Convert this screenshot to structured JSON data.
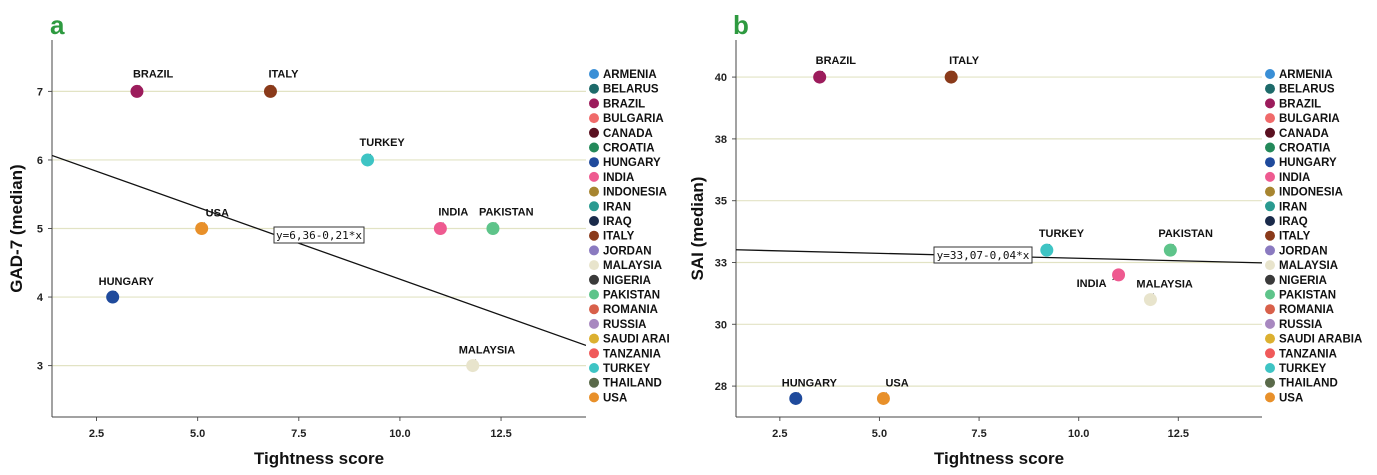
{
  "panels": [
    {
      "letter": "a",
      "xlabel": "Tightness score",
      "ylabel": "GAD-7 (median)",
      "x_ticks": [
        {
          "value": 2.5,
          "label": "2.5"
        },
        {
          "value": 5.0,
          "label": "5.0"
        },
        {
          "value": 7.5,
          "label": "7.5"
        },
        {
          "value": 10.0,
          "label": "10.0"
        },
        {
          "value": 12.5,
          "label": "12.5"
        }
      ],
      "y_ticks": [
        {
          "value": 3,
          "label": "3"
        },
        {
          "value": 4,
          "label": "4"
        },
        {
          "value": 5,
          "label": "5"
        },
        {
          "value": 6,
          "label": "6"
        },
        {
          "value": 7,
          "label": "7"
        }
      ],
      "equation": "y=6,36-0,21*x"
    },
    {
      "letter": "b",
      "xlabel": "Tightness score",
      "ylabel": "SAI (median)",
      "x_ticks": [
        {
          "value": 2.5,
          "label": "2.5"
        },
        {
          "value": 5.0,
          "label": "5.0"
        },
        {
          "value": 7.5,
          "label": "7.5"
        },
        {
          "value": 10.0,
          "label": "10.0"
        },
        {
          "value": 12.5,
          "label": "12.5"
        }
      ],
      "y_ticks": [
        {
          "value": 27.5,
          "label": "28"
        },
        {
          "value": 30,
          "label": "30"
        },
        {
          "value": 32.5,
          "label": "33"
        },
        {
          "value": 35,
          "label": "35"
        },
        {
          "value": 37.5,
          "label": "38"
        },
        {
          "value": 40,
          "label": "40"
        }
      ],
      "equation": "y=33,07-0,04*x"
    }
  ],
  "legend_a": [
    {
      "name": "ARMENIA",
      "color": "#3a8fd6"
    },
    {
      "name": "BELARUS",
      "color": "#1d6a6a"
    },
    {
      "name": "BRAZIL",
      "color": "#9c1c5c"
    },
    {
      "name": "BULGARIA",
      "color": "#f06a6a"
    },
    {
      "name": "CANADA",
      "color": "#5a1020"
    },
    {
      "name": "CROATIA",
      "color": "#23895a"
    },
    {
      "name": "HUNGARY",
      "color": "#1f4a9c"
    },
    {
      "name": "INDIA",
      "color": "#ee5a90"
    },
    {
      "name": "INDONESIA",
      "color": "#a78530"
    },
    {
      "name": "IRAN",
      "color": "#2a9a90"
    },
    {
      "name": "IRAQ",
      "color": "#1a2a4a"
    },
    {
      "name": "ITALY",
      "color": "#8a3a1a"
    },
    {
      "name": "JORDAN",
      "color": "#8a7ac0"
    },
    {
      "name": "MALAYSIA",
      "color": "#e8e4cc"
    },
    {
      "name": "NIGERIA",
      "color": "#3a3a3a"
    },
    {
      "name": "PAKISTAN",
      "color": "#5ec48a"
    },
    {
      "name": "ROMANIA",
      "color": "#d8604a"
    },
    {
      "name": "RUSSIA",
      "color": "#a888c0"
    },
    {
      "name": "SAUDI ARAI",
      "color": "#dcb030"
    },
    {
      "name": "TANZANIA",
      "color": "#f05a5a"
    },
    {
      "name": "TURKEY",
      "color": "#3ec4c4"
    },
    {
      "name": "THAILAND",
      "color": "#5a6a4a"
    },
    {
      "name": "USA",
      "color": "#e8902a"
    }
  ],
  "legend_b": [
    {
      "name": "ARMENIA",
      "color": "#3a8fd6"
    },
    {
      "name": "BELARUS",
      "color": "#1d6a6a"
    },
    {
      "name": "BRAZIL",
      "color": "#9c1c5c"
    },
    {
      "name": "BULGARIA",
      "color": "#f06a6a"
    },
    {
      "name": "CANADA",
      "color": "#5a1020"
    },
    {
      "name": "CROATIA",
      "color": "#23895a"
    },
    {
      "name": "HUNGARY",
      "color": "#1f4a9c"
    },
    {
      "name": "INDIA",
      "color": "#ee5a90"
    },
    {
      "name": "INDONESIA",
      "color": "#a78530"
    },
    {
      "name": "IRAN",
      "color": "#2a9a90"
    },
    {
      "name": "IRAQ",
      "color": "#1a2a4a"
    },
    {
      "name": "ITALY",
      "color": "#8a3a1a"
    },
    {
      "name": "JORDAN",
      "color": "#8a7ac0"
    },
    {
      "name": "MALAYSIA",
      "color": "#e8e4cc"
    },
    {
      "name": "NIGERIA",
      "color": "#3a3a3a"
    },
    {
      "name": "PAKISTAN",
      "color": "#5ec48a"
    },
    {
      "name": "ROMANIA",
      "color": "#d8604a"
    },
    {
      "name": "RUSSIA",
      "color": "#a888c0"
    },
    {
      "name": "SAUDI ARABIA",
      "color": "#dcb030"
    },
    {
      "name": "TANZANIA",
      "color": "#f05a5a"
    },
    {
      "name": "TURKEY",
      "color": "#3ec4c4"
    },
    {
      "name": "THAILAND",
      "color": "#5a6a4a"
    },
    {
      "name": "USA",
      "color": "#e8902a"
    }
  ],
  "chart_data": [
    {
      "type": "scatter",
      "xlabel": "Tightness score",
      "ylabel": "GAD-7 (median)",
      "xlim": [
        1.4,
        14.6
      ],
      "ylim": [
        2.25,
        7.75
      ],
      "gridlines": "horizontal",
      "legend": "right",
      "points": [
        {
          "name": "BRAZIL",
          "x": 3.5,
          "y": 7,
          "color": "#9c1c5c"
        },
        {
          "name": "ITALY",
          "x": 6.8,
          "y": 7,
          "color": "#8a3a1a"
        },
        {
          "name": "TURKEY",
          "x": 9.2,
          "y": 6,
          "color": "#3ec4c4"
        },
        {
          "name": "USA",
          "x": 5.1,
          "y": 5,
          "color": "#e8902a"
        },
        {
          "name": "INDIA",
          "x": 11.0,
          "y": 5,
          "color": "#ee5a90"
        },
        {
          "name": "PAKISTAN",
          "x": 12.3,
          "y": 5,
          "color": "#5ec48a"
        },
        {
          "name": "HUNGARY",
          "x": 2.9,
          "y": 4,
          "color": "#1f4a9c"
        },
        {
          "name": "MALAYSIA",
          "x": 11.8,
          "y": 3,
          "color": "#e8e4cc"
        }
      ],
      "fit_line": {
        "intercept": 6.36,
        "slope": -0.21,
        "label": "y=6,36-0,21*x"
      }
    },
    {
      "type": "scatter",
      "xlabel": "Tightness score",
      "ylabel": "SAI (median)",
      "xlim": [
        1.4,
        14.6
      ],
      "ylim": [
        26.25,
        41.5
      ],
      "gridlines": "horizontal",
      "legend": "right",
      "points": [
        {
          "name": "BRAZIL",
          "x": 3.5,
          "y": 40,
          "color": "#9c1c5c"
        },
        {
          "name": "ITALY",
          "x": 6.8,
          "y": 40,
          "color": "#8a3a1a"
        },
        {
          "name": "TURKEY",
          "x": 9.2,
          "y": 33,
          "color": "#3ec4c4"
        },
        {
          "name": "PAKISTAN",
          "x": 12.3,
          "y": 33,
          "color": "#5ec48a"
        },
        {
          "name": "INDIA",
          "x": 11.0,
          "y": 32,
          "color": "#ee5a90"
        },
        {
          "name": "MALAYSIA",
          "x": 11.8,
          "y": 31,
          "color": "#e8e4cc"
        },
        {
          "name": "HUNGARY",
          "x": 2.9,
          "y": 27,
          "color": "#1f4a9c"
        },
        {
          "name": "USA",
          "x": 5.1,
          "y": 27,
          "color": "#e8902a"
        }
      ],
      "fit_line": {
        "intercept": 33.07,
        "slope": -0.04,
        "label": "y=33,07-0,04*x"
      }
    }
  ]
}
